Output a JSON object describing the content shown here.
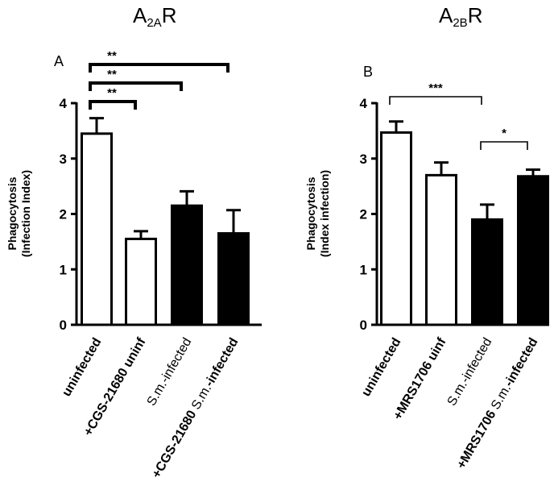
{
  "chart_data": [
    {
      "type": "bar",
      "panel": "A",
      "title": "A2AR",
      "title_main": "A",
      "title_sub": "2A",
      "title_end": "R",
      "ylabel_line1": "Phagocytosis",
      "ylabel_line2": "(Infection Index)",
      "ylim": [
        0,
        4
      ],
      "yticks": [
        "0",
        "1",
        "2",
        "3",
        "4"
      ],
      "categories": [
        "uninfected",
        "+CGS-21680 uninf",
        "S.m.-infected",
        "+CGS-21680 S.m.-infected"
      ],
      "values": [
        3.45,
        1.55,
        2.15,
        1.65
      ],
      "errors": [
        0.28,
        0.14,
        0.26,
        0.42
      ],
      "fills": [
        "#ffffff",
        "#ffffff",
        "#000000",
        "#000000"
      ],
      "significance": [
        {
          "from": 0,
          "to": 1,
          "label": "**"
        },
        {
          "from": 0,
          "to": 2,
          "label": "**"
        },
        {
          "from": 0,
          "to": 3,
          "label": "**"
        }
      ]
    },
    {
      "type": "bar",
      "panel": "B",
      "title": "A2BR",
      "title_main": "A",
      "title_sub": "2B",
      "title_end": "R",
      "ylabel_line1": "Phagocytosis",
      "ylabel_line2": "(Index infection)",
      "ylim": [
        0,
        4
      ],
      "yticks": [
        "0",
        "1",
        "2",
        "3",
        "4"
      ],
      "categories": [
        "uninfected",
        "+MRS1706 uinf",
        "S.m.-infected",
        "+MRS1706 S.m.-infected"
      ],
      "values": [
        3.47,
        2.7,
        1.9,
        2.68
      ],
      "errors": [
        0.2,
        0.23,
        0.27,
        0.12
      ],
      "fills": [
        "#ffffff",
        "#ffffff",
        "#000000",
        "#000000"
      ],
      "significance": [
        {
          "from": 0,
          "to": 2,
          "label": "***"
        },
        {
          "from": 2,
          "to": 3,
          "label": "*"
        }
      ]
    }
  ]
}
